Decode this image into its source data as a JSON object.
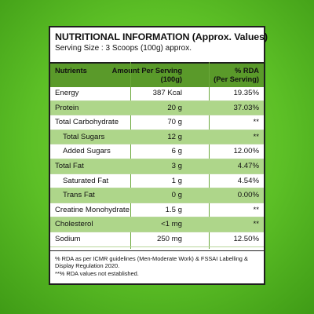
{
  "panel": {
    "title": "NUTRITIONAL INFORMATION (Approx. Values)",
    "serving": "Serving Size : 3 Scoops (100g) approx."
  },
  "header": {
    "col1": "Nutrients",
    "col2_line1": "Amount Per Serving",
    "col2_line2": "(100g)",
    "col3_line1": "% RDA",
    "col3_line2": "(Per Serving)"
  },
  "rows": [
    {
      "name": "Energy",
      "amount": "387 Kcal",
      "rda": "19.35%"
    },
    {
      "name": "Protein",
      "amount": "20 g",
      "rda": "37.03%"
    },
    {
      "name": "Total Carbohydrate",
      "amount": "70 g",
      "rda": "**"
    },
    {
      "name": "Total Sugars",
      "amount": "12 g",
      "rda": "**"
    },
    {
      "name": "Added Sugars",
      "amount": "6 g",
      "rda": "12.00%"
    },
    {
      "name": "Total Fat",
      "amount": "3 g",
      "rda": "4.47%"
    },
    {
      "name": "Saturated Fat",
      "amount": "1 g",
      "rda": "4.54%"
    },
    {
      "name": "Trans Fat",
      "amount": "0 g",
      "rda": "0.00%"
    },
    {
      "name": "Creatine Monohydrate",
      "amount": "1.5 g",
      "rda": "**"
    },
    {
      "name": "Cholesterol",
      "amount": "<1 mg",
      "rda": "**"
    },
    {
      "name": "Sodium",
      "amount": "250 mg",
      "rda": "12.50%"
    }
  ],
  "footer": {
    "note1": "% RDA as per ICMR guidelines (Men-Moderate Work) & FSSAI Labelling & Display Regulation 2020.",
    "note2": "**% RDA values not established."
  },
  "colors": {
    "background": "#5cbf26",
    "header_fill": "#5a9a2a",
    "alt_row_fill": "#aed68a"
  }
}
